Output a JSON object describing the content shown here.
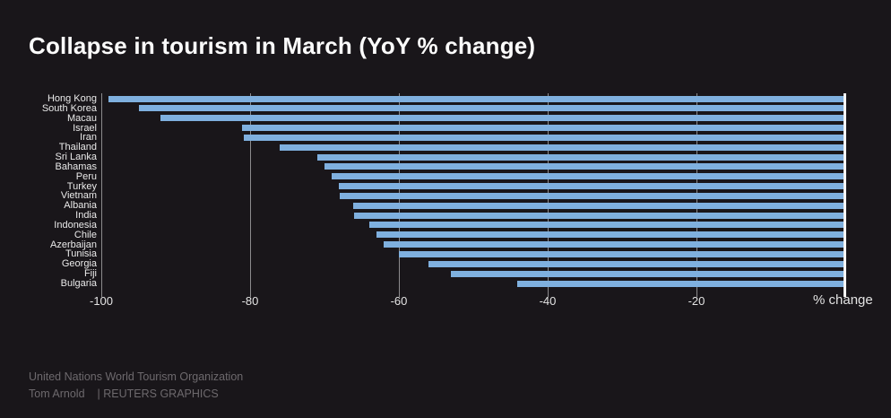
{
  "title": "Collapse in tourism in March (YoY % change)",
  "footer": {
    "source": "United Nations World Tourism Organization",
    "byline": "Tom Arnold",
    "credit": "| REUTERS GRAPHICS"
  },
  "chart_data": {
    "type": "bar",
    "orientation": "horizontal",
    "title": "Collapse in tourism in March (YoY % change)",
    "categories": [
      "Hong Kong",
      "South Korea",
      "Macau",
      "Israel",
      "Iran",
      "Thailand",
      "Sri Lanka",
      "Bahamas",
      "Peru",
      "Turkey",
      "Vietnam",
      "Albania",
      "India",
      "Indonesia",
      "Chile",
      "Azerbaijan",
      "Tunisia",
      "Georgia",
      "Fiji",
      "Bulgaria"
    ],
    "values": [
      -99.1,
      -95,
      -92,
      -81.1,
      -80.9,
      -76,
      -71,
      -70,
      -69,
      -68.1,
      -67.9,
      -66.2,
      -66,
      -64,
      -63,
      -62,
      -60,
      -56,
      -53,
      -44.1
    ],
    "xlabel": "% change",
    "xlim": [
      -100,
      0
    ],
    "xticks": [
      -100,
      -80,
      -60,
      -40,
      -20
    ],
    "xtick_labels": [
      "-100",
      "-80",
      "-60",
      "-40",
      "-20"
    ],
    "grid": true,
    "legend": false,
    "bar_color": "#7fb0df",
    "background_color": "#19161a",
    "gridline_color": "rgba(255,255,255,0.5)",
    "zero_axis_color": "#f5f5f5"
  }
}
